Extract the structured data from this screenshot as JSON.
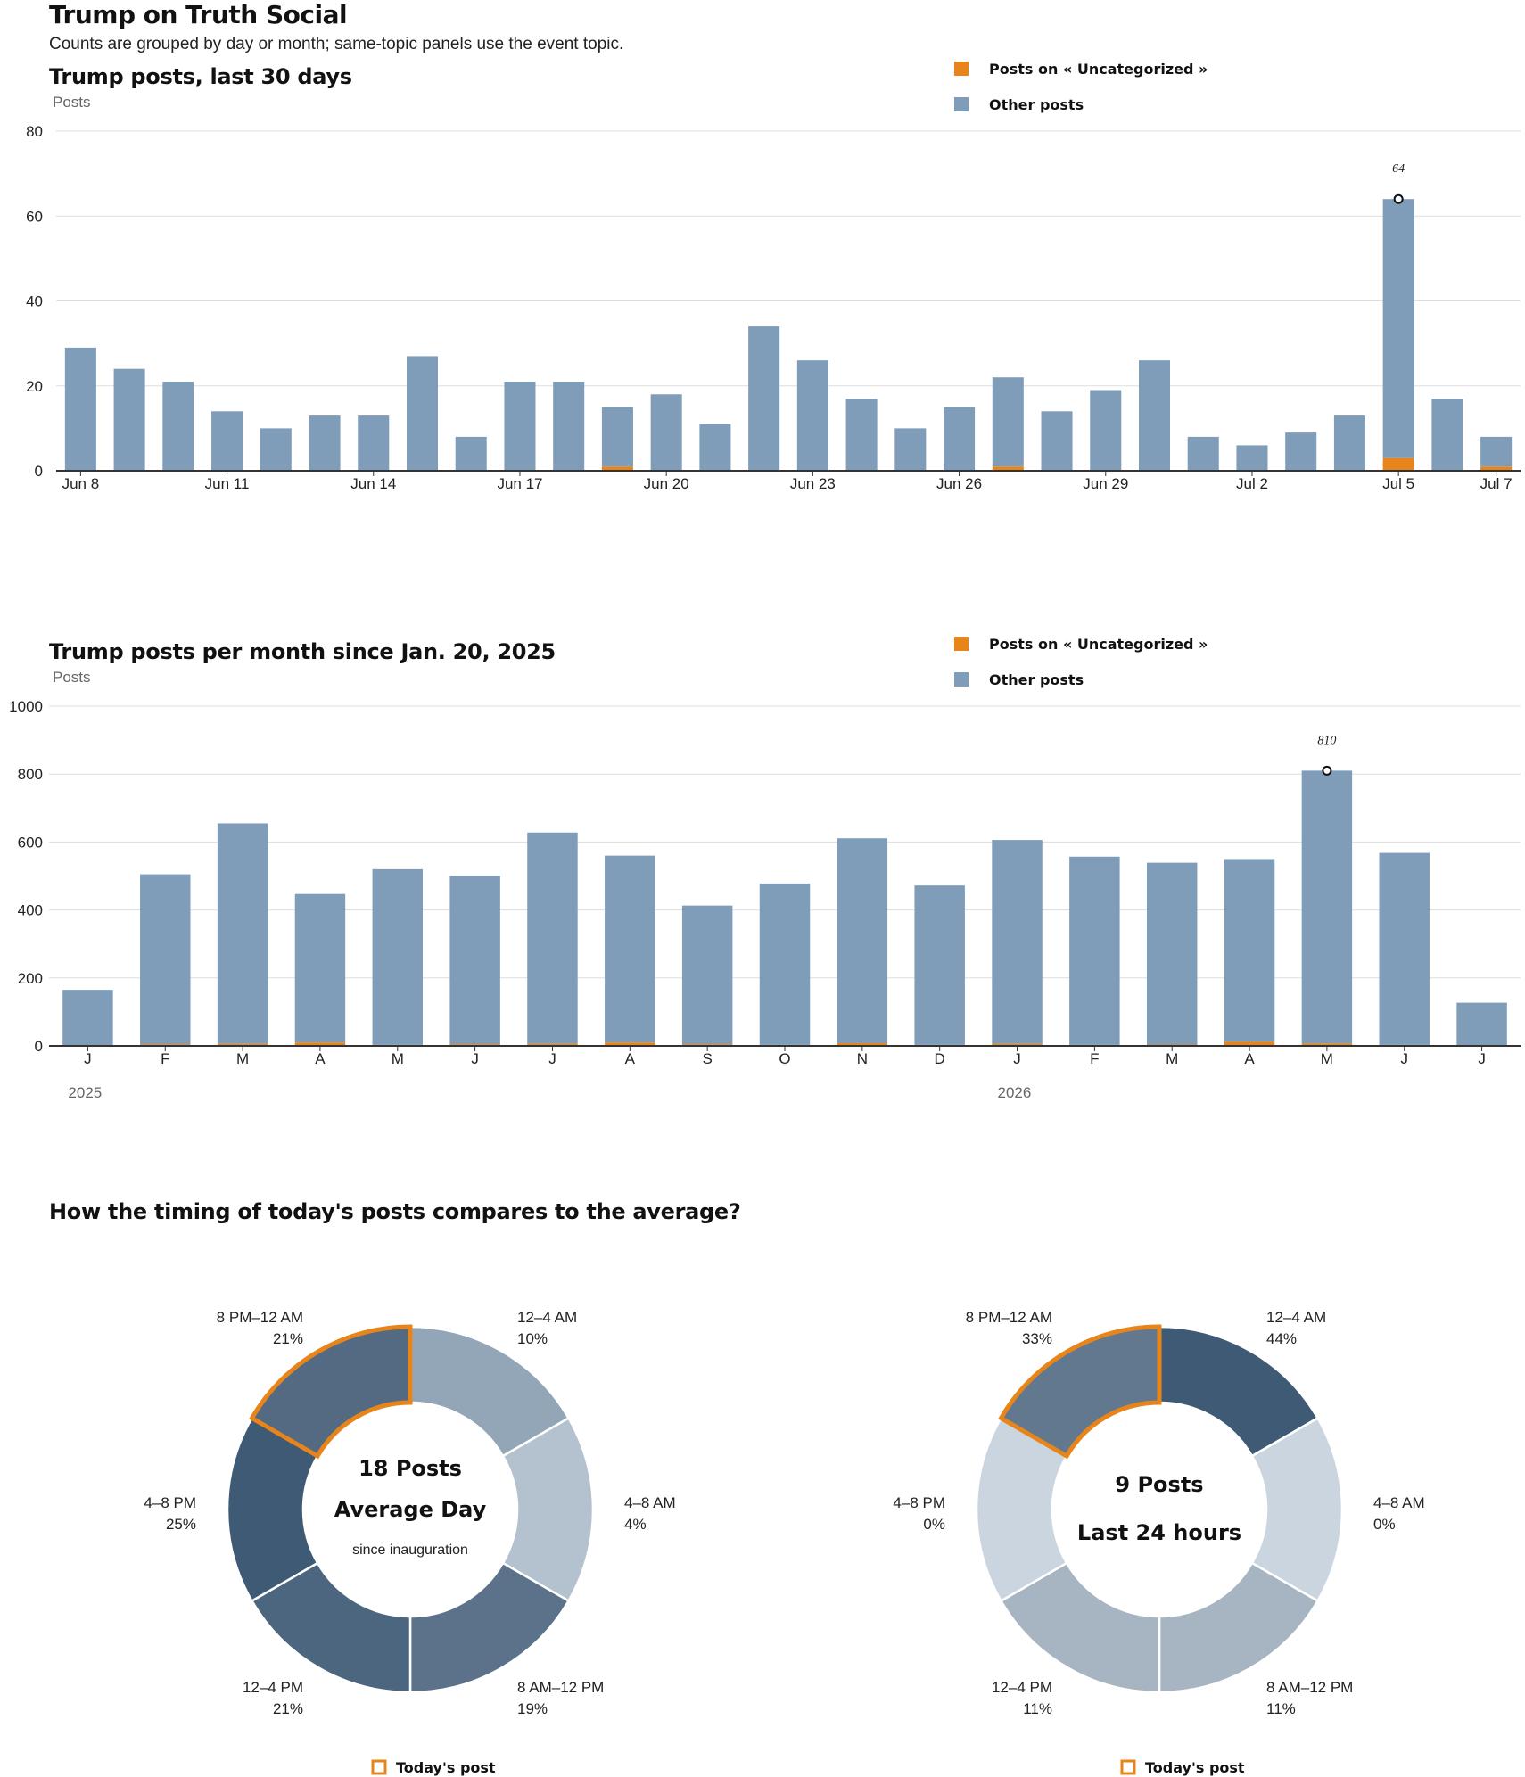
{
  "page": {
    "title": "Trump on Truth Social",
    "subtitle": "Counts are grouped by day or month; same-topic panels use the event topic."
  },
  "colors": {
    "topic": "#e8851a",
    "other": "#7f9cb9",
    "axis": "#333333",
    "grid": "#dddddd",
    "highlight_outline": "#e8851a"
  },
  "chart_data": [
    {
      "type": "bar",
      "stacked": true,
      "title": "Trump posts, last 30 days",
      "ylabel": "Posts",
      "ylim": [
        0,
        80
      ],
      "yticks": [
        0,
        20,
        40,
        60,
        80
      ],
      "categories": [
        "Jun 8",
        "Jun 9",
        "Jun 10",
        "Jun 11",
        "Jun 12",
        "Jun 13",
        "Jun 14",
        "Jun 15",
        "Jun 16",
        "Jun 17",
        "Jun 18",
        "Jun 19",
        "Jun 20",
        "Jun 21",
        "Jun 22",
        "Jun 23",
        "Jun 24",
        "Jun 25",
        "Jun 26",
        "Jun 27",
        "Jun 28",
        "Jun 29",
        "Jun 30",
        "Jul 1",
        "Jul 2",
        "Jul 3",
        "Jul 4",
        "Jul 5",
        "Jul 6",
        "Jul 7"
      ],
      "tick_labels": [
        {
          "index": 0,
          "label": "Jun 8"
        },
        {
          "index": 3,
          "label": "Jun 11"
        },
        {
          "index": 6,
          "label": "Jun 14"
        },
        {
          "index": 9,
          "label": "Jun 17"
        },
        {
          "index": 12,
          "label": "Jun 20"
        },
        {
          "index": 15,
          "label": "Jun 23"
        },
        {
          "index": 18,
          "label": "Jun 26"
        },
        {
          "index": 21,
          "label": "Jun 29"
        },
        {
          "index": 24,
          "label": "Jul 2"
        },
        {
          "index": 27,
          "label": "Jul 5"
        },
        {
          "index": 29,
          "label": "Jul 7"
        }
      ],
      "series": [
        {
          "name": "Posts on « Uncategorized »",
          "color": "#e8851a",
          "values": [
            0,
            0,
            0,
            0,
            0,
            0,
            0,
            0,
            0,
            0,
            0,
            1,
            0,
            0,
            0,
            0,
            0,
            0,
            0,
            1,
            0,
            0,
            0,
            0,
            0,
            0,
            0,
            3,
            0,
            1
          ]
        },
        {
          "name": "Other posts",
          "color": "#7f9cb9",
          "values": [
            29,
            24,
            21,
            14,
            10,
            13,
            13,
            27,
            8,
            21,
            21,
            14,
            18,
            11,
            34,
            26,
            17,
            10,
            15,
            21,
            14,
            19,
            26,
            8,
            6,
            9,
            13,
            61,
            17,
            7
          ]
        }
      ],
      "legend": "top-right",
      "grid": true,
      "annotation": {
        "index": 27,
        "label": "64"
      }
    },
    {
      "type": "bar",
      "stacked": true,
      "title": "Trump posts per month since Jan. 20, 2025",
      "ylabel": "Posts",
      "ylim": [
        0,
        1000
      ],
      "yticks": [
        0,
        200,
        400,
        600,
        800,
        1000
      ],
      "categories": [
        "J",
        "F",
        "M",
        "A",
        "M",
        "J",
        "J",
        "A",
        "S",
        "O",
        "N",
        "D",
        "J",
        "F",
        "M",
        "A",
        "M",
        "J",
        "J"
      ],
      "year_labels": [
        {
          "index": 0,
          "label": "2025"
        },
        {
          "index": 12,
          "label": "2026"
        }
      ],
      "series": [
        {
          "name": "Posts on « Uncategorized »",
          "color": "#e8851a",
          "values": [
            2,
            5,
            6,
            10,
            3,
            5,
            6,
            10,
            5,
            3,
            8,
            3,
            6,
            3,
            4,
            12,
            7,
            3,
            1
          ]
        },
        {
          "name": "Other posts",
          "color": "#7f9cb9",
          "values": [
            163,
            500,
            649,
            437,
            517,
            495,
            622,
            550,
            408,
            475,
            603,
            469,
            600,
            554,
            535,
            538,
            803,
            565,
            126
          ]
        }
      ],
      "legend": "top-right",
      "grid": true,
      "annotation": {
        "index": 16,
        "label": "810"
      }
    },
    {
      "type": "pie",
      "variant": "donut",
      "title": "How the timing of today's posts compares to the average?",
      "center_value": "18 Posts",
      "center_title": "Average Day",
      "center_note": "since inauguration",
      "highlight_index": 5,
      "slices": [
        {
          "label": "12–4 AM",
          "pct_label": "10%",
          "value": 10,
          "color": "#93a6b8"
        },
        {
          "label": "4–8 AM",
          "pct_label": "4%",
          "value": 4,
          "color": "#b4c2cf"
        },
        {
          "label": "8 AM–12 PM",
          "pct_label": "19%",
          "value": 19,
          "color": "#5c728b"
        },
        {
          "label": "12–4 PM",
          "pct_label": "21%",
          "value": 21,
          "color": "#4d6680"
        },
        {
          "label": "4–8 PM",
          "pct_label": "25%",
          "value": 25,
          "color": "#3f5a75"
        },
        {
          "label": "8 PM–12 AM",
          "pct_label": "21%",
          "value": 21,
          "color": "#546a82"
        }
      ],
      "legend_label": "Today's post"
    },
    {
      "type": "pie",
      "variant": "donut",
      "center_value": "9 Posts",
      "center_title": "Last 24 hours",
      "highlight_index": 5,
      "slices": [
        {
          "label": "12–4 AM",
          "pct_label": "44%",
          "value": 44,
          "color": "#3f5a75"
        },
        {
          "label": "4–8 AM",
          "pct_label": "0%",
          "value": 0,
          "color": "#cbd5df"
        },
        {
          "label": "8 AM–12 PM",
          "pct_label": "11%",
          "value": 11,
          "color": "#a7b5c3"
        },
        {
          "label": "12–4 PM",
          "pct_label": "11%",
          "value": 11,
          "color": "#a7b5c3"
        },
        {
          "label": "4–8 PM",
          "pct_label": "0%",
          "value": 0,
          "color": "#cbd5df"
        },
        {
          "label": "8 PM–12 AM",
          "pct_label": "33%",
          "value": 33,
          "color": "#62788e"
        }
      ],
      "legend_label": "Today's post"
    }
  ]
}
